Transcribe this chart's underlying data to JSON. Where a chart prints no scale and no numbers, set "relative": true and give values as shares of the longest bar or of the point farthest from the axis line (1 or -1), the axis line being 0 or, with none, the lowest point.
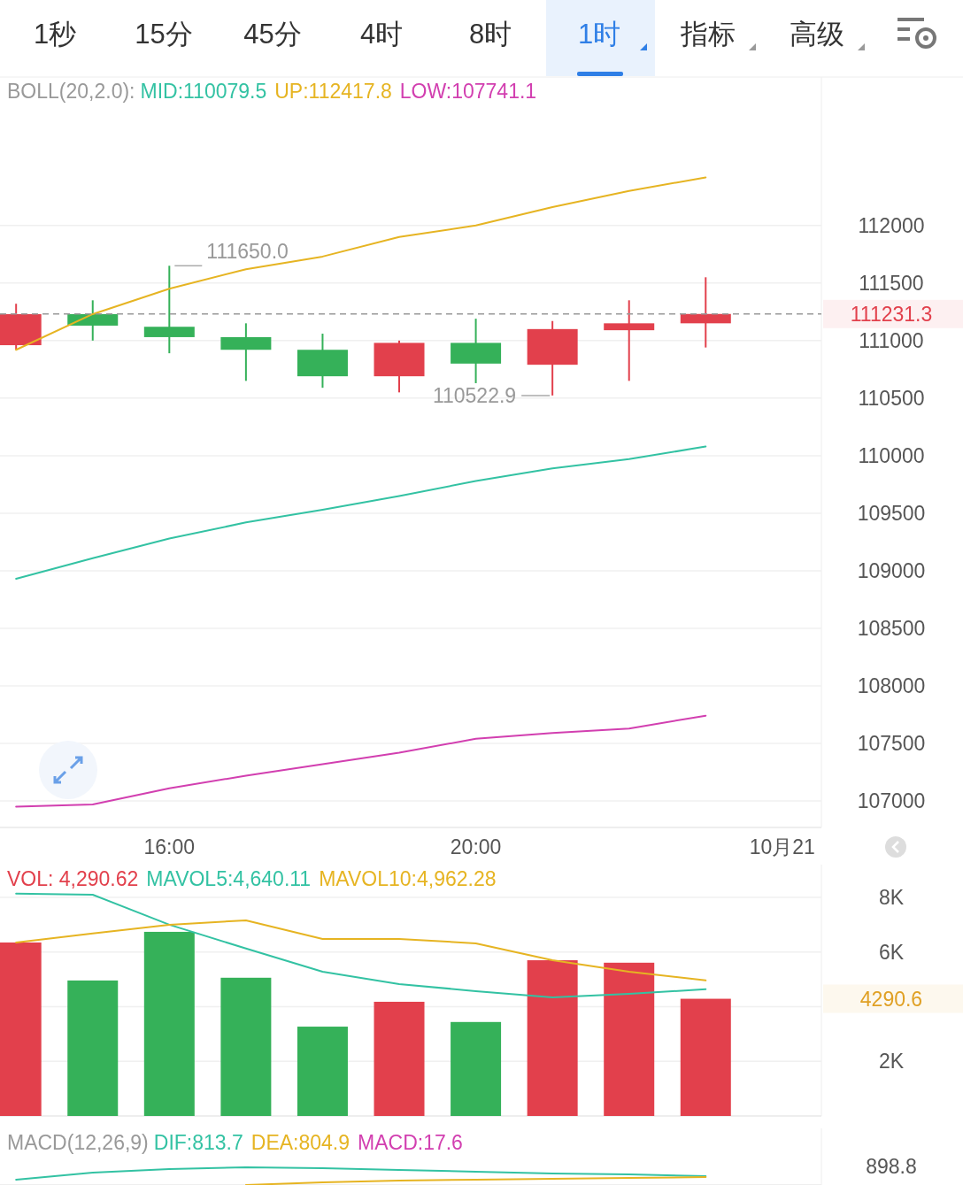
{
  "chart_data": [
    {
      "type": "other",
      "annotations": [
        "1秒",
        "15分",
        "45分",
        "4时",
        "8时",
        "1时",
        "指标",
        "高级"
      ]
    },
    {
      "type": "candlestick",
      "title": "BOLL(20,2.0):",
      "x": [
        14,
        15,
        16,
        17,
        18,
        19,
        20,
        21,
        22,
        23
      ],
      "ohlc": [
        [
          110960,
          111320,
          110920,
          111230
        ],
        [
          111230,
          111350,
          111000,
          111130
        ],
        [
          111120,
          111650,
          110890,
          111030
        ],
        [
          111030,
          111150,
          110650,
          110920
        ],
        [
          110920,
          111060,
          110590,
          110690
        ],
        [
          110690,
          111000,
          110550,
          110980
        ],
        [
          110980,
          111190,
          110630,
          110800
        ],
        [
          110790,
          111170,
          110522.9,
          111100
        ],
        [
          111090,
          111350,
          110650,
          111150
        ],
        [
          111150,
          111550,
          110940,
          111231.3
        ]
      ],
      "series": [
        {
          "name": "MID:110079.5",
          "type": "line",
          "color": "#33c2a3",
          "values": [
            108930,
            109110,
            109280,
            109420,
            109530,
            109650,
            109780,
            109890,
            109970,
            110079.5
          ]
        },
        {
          "name": "UP:112417.8",
          "type": "line",
          "color": "#e6b422",
          "values": [
            110920,
            111230,
            111450,
            111620,
            111730,
            111900,
            112000,
            112160,
            112300,
            112417.8
          ]
        },
        {
          "name": "LOW:107741.1",
          "type": "line",
          "color": "#d23fb0",
          "values": [
            106950,
            106970,
            107110,
            107220,
            107320,
            107420,
            107540,
            107590,
            107630,
            107741.1
          ]
        }
      ],
      "xlim": [
        13.79,
        24.51
      ],
      "xticks": [
        {
          "value": 16,
          "label": "16:00"
        },
        {
          "value": 20,
          "label": "20:00"
        },
        {
          "value": 24,
          "label": "10月21"
        }
      ],
      "ylim": [
        106770,
        113290
      ],
      "yticks": [
        107000,
        107500,
        108000,
        108500,
        109000,
        109500,
        110000,
        110500,
        111000,
        111500,
        112000
      ],
      "grid": "y",
      "legend": "top",
      "ref_lines": [
        {
          "axis": "y",
          "value": 111231.3,
          "label": "111231.3",
          "line_style": "dashed"
        }
      ],
      "annotations": [
        {
          "text": "111650.0",
          "x": 16,
          "y": 111650
        },
        {
          "text": "110522.9",
          "x": 21,
          "y": 110522.9
        }
      ]
    },
    {
      "type": "bar",
      "x": [
        14,
        15,
        16,
        17,
        18,
        19,
        20,
        21,
        22,
        23
      ],
      "series": [
        {
          "name": "VOL: 4,290.62",
          "colors": [
            "#e2404c",
            "#35b159",
            "#35b159",
            "#35b159",
            "#35b159",
            "#e2404c",
            "#35b159",
            "#e2404c",
            "#e2404c",
            "#e2404c"
          ],
          "values": [
            6350,
            4960,
            6740,
            5060,
            3270,
            4180,
            3440,
            5700,
            5610,
            4290.62
          ]
        },
        {
          "name": "MAVOL5:4,640.11",
          "type": "line",
          "color": "#33c2a3",
          "values": [
            8140,
            8100,
            7000,
            6130,
            5280,
            4830,
            4570,
            4340,
            4470,
            4640.11
          ]
        },
        {
          "name": "MAVOL10:4,962.28",
          "type": "line",
          "color": "#e6b422",
          "values": [
            6350,
            6680,
            7000,
            7160,
            6480,
            6480,
            6320,
            5700,
            5280,
            4962.28
          ]
        }
      ],
      "xlim": [
        13.79,
        24.51
      ],
      "ylim": [
        0,
        9200
      ],
      "yticks": [
        {
          "value": 2000,
          "label": "2K"
        },
        {
          "value": 4000,
          "label": null
        },
        {
          "value": 6000,
          "label": "6K"
        },
        {
          "value": 8000,
          "label": "8K"
        }
      ],
      "grid": "y",
      "legend": "top left",
      "tick_labels": "y",
      "annotations": [
        "4290.6"
      ]
    },
    {
      "type": "line",
      "title": "MACD(12,26,9)",
      "relative": true,
      "x": [
        14,
        15,
        16,
        17,
        18,
        19,
        20,
        21,
        22,
        23
      ],
      "xlim": [
        13.79,
        24.51
      ],
      "series": [
        {
          "name": "DIF:813.7",
          "color": "#33c2a3",
          "values": [
            0.3,
            0.7,
            0.9,
            1,
            0.95,
            0.85,
            0.75,
            0.65,
            0.6,
            0.5
          ]
        },
        {
          "name": "DEA:804.9",
          "color": "#e6b422",
          "values": [
            null,
            null,
            null,
            0,
            0.15,
            0.25,
            0.3,
            0.35,
            0.4,
            0.45
          ]
        },
        {
          "name": "MACD:17.6",
          "color": "#d23fb0",
          "values": [
            null,
            null,
            null,
            null,
            null,
            null,
            null,
            null,
            null,
            null
          ]
        }
      ],
      "legend": "top left",
      "tick_labels": false,
      "annotations": [
        "898.8"
      ]
    }
  ]
}
